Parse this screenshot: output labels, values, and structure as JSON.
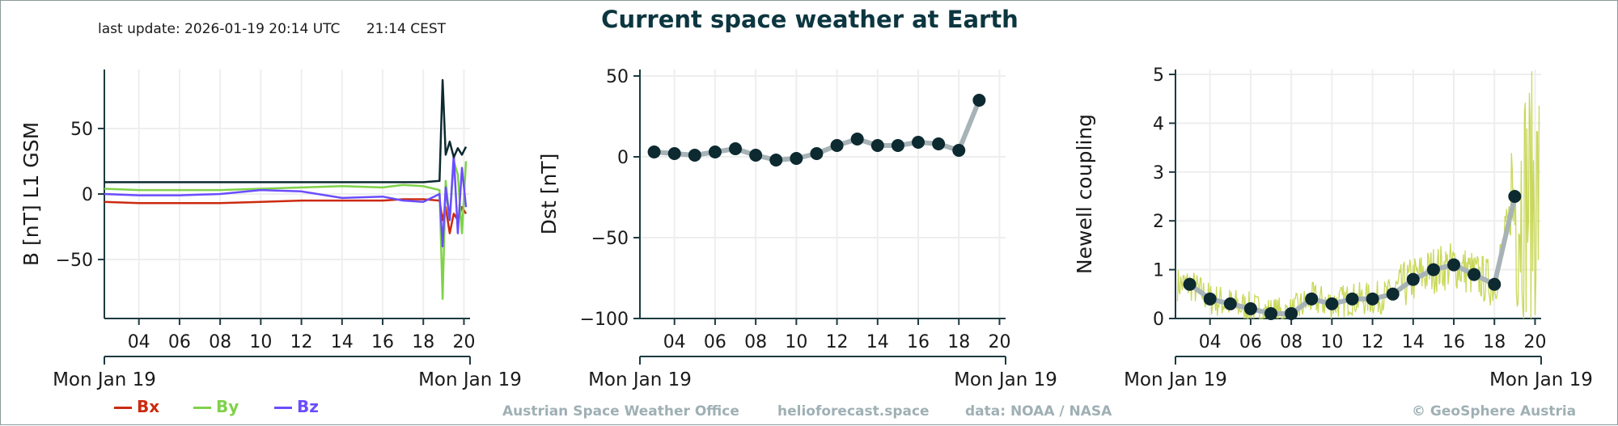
{
  "header": {
    "title": "Current space weather at Earth",
    "last_update": "last update: 2026-01-19 20:14 UTC      21:14 CEST"
  },
  "footer": {
    "office": "Austrian Space Weather Office",
    "site": "helioforecast.space",
    "data_source": "data: NOAA / NASA",
    "copyright": "© GeoSphere Austria"
  },
  "colors": {
    "bx": "#cc2a10",
    "by": "#7fd24a",
    "bz": "#6a4dff",
    "bt": "#0c2a30",
    "dst_line": "#a7b3b6",
    "dst_marker": "#0c2a30",
    "newell_raw": "#c9d85a",
    "axis": "#1d3a40",
    "grid": "#eeeeee"
  },
  "chart_data": [
    {
      "type": "line",
      "ylabel": "B [nT] L1 GSM",
      "x_tick_labels": [
        "04",
        "06",
        "08",
        "10",
        "12",
        "14",
        "16",
        "18",
        "20"
      ],
      "date_start_label": "Mon Jan 19",
      "date_end_label": "Mon Jan 19",
      "xlim_hours": [
        2.3,
        20.3
      ],
      "ylim": [
        -95,
        95
      ],
      "y_ticks": [
        -50,
        0,
        50
      ],
      "grid": true,
      "legend": {
        "placement": "bottom-left",
        "entries": [
          "Bx",
          "By",
          "Bz"
        ]
      },
      "series": [
        {
          "name": "Bt",
          "x_hours": [
            2.3,
            4,
            6,
            8,
            10,
            12,
            14,
            16,
            17,
            18,
            18.8,
            18.95,
            19.1,
            19.3,
            19.5,
            19.7,
            19.9,
            20.1
          ],
          "values": [
            9,
            9,
            9,
            9,
            9,
            9,
            9,
            9,
            9,
            9,
            10,
            87,
            30,
            40,
            28,
            35,
            30,
            36
          ]
        },
        {
          "name": "Bx",
          "x_hours": [
            2.3,
            4,
            6,
            8,
            10,
            12,
            14,
            16,
            17,
            18,
            18.8,
            18.95,
            19.1,
            19.3,
            19.5,
            19.7,
            19.9,
            20.1
          ],
          "values": [
            -6,
            -7,
            -7,
            -7,
            -6,
            -5,
            -5,
            -5,
            -4,
            -4,
            -5,
            -20,
            -10,
            -30,
            -15,
            -20,
            -10,
            -15
          ]
        },
        {
          "name": "By",
          "x_hours": [
            2.3,
            4,
            6,
            8,
            10,
            12,
            14,
            16,
            17,
            18,
            18.8,
            18.95,
            19.1,
            19.3,
            19.5,
            19.7,
            19.9,
            20.1
          ],
          "values": [
            4,
            3,
            3,
            3,
            4,
            5,
            6,
            5,
            7,
            6,
            3,
            -80,
            10,
            -20,
            25,
            15,
            -30,
            25
          ]
        },
        {
          "name": "Bz",
          "x_hours": [
            2.3,
            4,
            6,
            8,
            10,
            12,
            14,
            16,
            17,
            18,
            18.8,
            18.95,
            19.1,
            19.3,
            19.5,
            19.7,
            19.9,
            20.1
          ],
          "values": [
            0,
            -1,
            -1,
            0,
            3,
            2,
            -3,
            -2,
            -5,
            -6,
            0,
            -40,
            5,
            -20,
            30,
            -30,
            20,
            -10
          ]
        }
      ]
    },
    {
      "type": "line",
      "ylabel": "Dst [nT]",
      "x_tick_labels": [
        "04",
        "06",
        "08",
        "10",
        "12",
        "14",
        "16",
        "18",
        "20"
      ],
      "date_start_label": "Mon Jan 19",
      "date_end_label": "Mon Jan 19",
      "xlim_hours": [
        2.3,
        20.3
      ],
      "ylim": [
        -100,
        54
      ],
      "y_ticks": [
        -100,
        -50,
        0,
        50
      ],
      "grid": true,
      "x_hours": [
        3,
        4,
        5,
        6,
        7,
        8,
        9,
        10,
        11,
        12,
        13,
        14,
        15,
        16,
        17,
        18,
        19
      ],
      "values": [
        3,
        2,
        1,
        3,
        5,
        1,
        -2,
        -1,
        2,
        7,
        11,
        7,
        7,
        9,
        8,
        4,
        35
      ]
    },
    {
      "type": "line",
      "ylabel": "Newell coupling",
      "x_tick_labels": [
        "04",
        "06",
        "08",
        "10",
        "12",
        "14",
        "16",
        "18",
        "20"
      ],
      "date_start_label": "Mon Jan 19",
      "date_end_label": "Mon Jan 19",
      "xlim_hours": [
        2.3,
        20.3
      ],
      "ylim": [
        0,
        5.1
      ],
      "y_ticks": [
        0,
        1,
        2,
        3,
        4,
        5
      ],
      "grid": true,
      "x_hours": [
        3,
        4,
        5,
        6,
        7,
        8,
        9,
        10,
        11,
        12,
        13,
        14,
        15,
        16,
        17,
        18,
        19
      ],
      "values": [
        0.7,
        0.4,
        0.3,
        0.2,
        0.1,
        0.1,
        0.4,
        0.3,
        0.4,
        0.4,
        0.5,
        0.8,
        1.0,
        1.1,
        0.9,
        0.7,
        2.5
      ]
    }
  ]
}
